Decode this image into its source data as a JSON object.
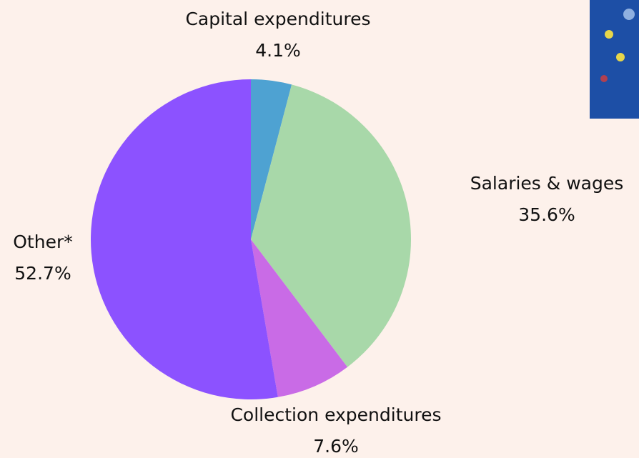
{
  "chart_data": {
    "type": "pie",
    "categories": [
      "Capital expenditures",
      "Salaries & wages",
      "Collection expenditures",
      "Other*"
    ],
    "values": [
      4.1,
      35.6,
      7.6,
      52.7
    ],
    "value_labels": [
      "4.1%",
      "35.6%",
      "7.6%",
      "52.7%"
    ],
    "colors": [
      "#4ea2d2",
      "#a8d8a9",
      "#c96be6",
      "#8c52ff"
    ]
  }
}
